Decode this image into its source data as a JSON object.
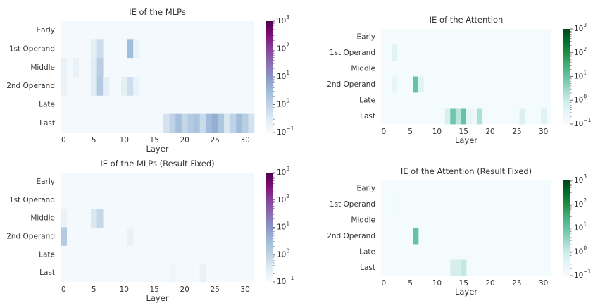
{
  "chart_data": [
    {
      "type": "heatmap",
      "title": "IE of the MLPs",
      "xlabel": "Layer",
      "rows": [
        "Early",
        "1st Operand",
        "Middle",
        "2nd Operand",
        "Late",
        "Last"
      ],
      "x_ticks": [
        0,
        5,
        10,
        15,
        20,
        25,
        30
      ],
      "n_layers": 32,
      "colormap": "BuPu",
      "colorbar": {
        "scale": "log",
        "range": [
          0.1,
          1000
        ],
        "tick_labels": [
          "10^3",
          "10^2",
          "10^1",
          "10^0",
          "10^-1"
        ]
      },
      "cells": [
        {
          "row": 1,
          "layer": 5,
          "value": 0.25
        },
        {
          "row": 1,
          "layer": 6,
          "value": 0.6
        },
        {
          "row": 1,
          "layer": 11,
          "value": 3
        },
        {
          "row": 1,
          "layer": 12,
          "value": 0.2
        },
        {
          "row": 2,
          "layer": 0,
          "value": 0.2
        },
        {
          "row": 2,
          "layer": 2,
          "value": 0.2
        },
        {
          "row": 2,
          "layer": 5,
          "value": 0.3
        },
        {
          "row": 2,
          "layer": 6,
          "value": 1.2
        },
        {
          "row": 3,
          "layer": 0,
          "value": 0.2
        },
        {
          "row": 3,
          "layer": 5,
          "value": 0.3
        },
        {
          "row": 3,
          "layer": 6,
          "value": 1.5
        },
        {
          "row": 3,
          "layer": 7,
          "value": 0.25
        },
        {
          "row": 3,
          "layer": 10,
          "value": 0.25
        },
        {
          "row": 3,
          "layer": 11,
          "value": 0.6
        },
        {
          "row": 3,
          "layer": 12,
          "value": 0.2
        },
        {
          "row": 5,
          "layer": 17,
          "value": 0.5
        },
        {
          "row": 5,
          "layer": 18,
          "value": 1
        },
        {
          "row": 5,
          "layer": 19,
          "value": 2.5
        },
        {
          "row": 5,
          "layer": 20,
          "value": 0.8
        },
        {
          "row": 5,
          "layer": 21,
          "value": 1.5
        },
        {
          "row": 5,
          "layer": 22,
          "value": 2
        },
        {
          "row": 5,
          "layer": 23,
          "value": 0.7
        },
        {
          "row": 5,
          "layer": 24,
          "value": 3
        },
        {
          "row": 5,
          "layer": 25,
          "value": 5
        },
        {
          "row": 5,
          "layer": 26,
          "value": 1.8
        },
        {
          "row": 5,
          "layer": 27,
          "value": 0.4
        },
        {
          "row": 5,
          "layer": 28,
          "value": 1
        },
        {
          "row": 5,
          "layer": 29,
          "value": 3
        },
        {
          "row": 5,
          "layer": 30,
          "value": 1.3
        },
        {
          "row": 5,
          "layer": 31,
          "value": 0.5
        }
      ]
    },
    {
      "type": "heatmap",
      "title": "IE of the Attention",
      "xlabel": "Layer",
      "rows": [
        "Early",
        "1st Operand",
        "Middle",
        "2nd Operand",
        "Late",
        "Last"
      ],
      "x_ticks": [
        0,
        5,
        10,
        15,
        20,
        25,
        30
      ],
      "n_layers": 32,
      "colormap": "BuGn",
      "colorbar": {
        "scale": "log",
        "range": [
          0.1,
          1000
        ],
        "tick_labels": [
          "10^3",
          "10^2",
          "10^1",
          "10^0",
          "10^-1"
        ]
      },
      "cells": [
        {
          "row": 1,
          "layer": 2,
          "value": 0.4
        },
        {
          "row": 3,
          "layer": 2,
          "value": 0.3
        },
        {
          "row": 3,
          "layer": 6,
          "value": 10
        },
        {
          "row": 3,
          "layer": 7,
          "value": 0.4
        },
        {
          "row": 5,
          "layer": 12,
          "value": 0.6
        },
        {
          "row": 5,
          "layer": 13,
          "value": 8
        },
        {
          "row": 5,
          "layer": 14,
          "value": 1.5
        },
        {
          "row": 5,
          "layer": 15,
          "value": 10
        },
        {
          "row": 5,
          "layer": 16,
          "value": 0.3
        },
        {
          "row": 5,
          "layer": 17,
          "value": 0.2
        },
        {
          "row": 5,
          "layer": 18,
          "value": 2
        },
        {
          "row": 5,
          "layer": 26,
          "value": 0.5
        },
        {
          "row": 5,
          "layer": 30,
          "value": 0.4
        }
      ]
    },
    {
      "type": "heatmap",
      "title": "IE of the MLPs (Result Fixed)",
      "xlabel": "Layer",
      "rows": [
        "Early",
        "1st Operand",
        "Middle",
        "2nd Operand",
        "Late",
        "Last"
      ],
      "x_ticks": [
        0,
        5,
        10,
        15,
        20,
        25,
        30
      ],
      "n_layers": 32,
      "colormap": "BuPu",
      "colorbar": {
        "scale": "log",
        "range": [
          0.1,
          1000
        ],
        "tick_labels": [
          "10^3",
          "10^2",
          "10^1",
          "10^0",
          "10^-1"
        ]
      },
      "cells": [
        {
          "row": 2,
          "layer": 0,
          "value": 0.2
        },
        {
          "row": 2,
          "layer": 5,
          "value": 0.4
        },
        {
          "row": 2,
          "layer": 6,
          "value": 0.8
        },
        {
          "row": 3,
          "layer": 0,
          "value": 1.5
        },
        {
          "row": 3,
          "layer": 11,
          "value": 0.2
        },
        {
          "row": 5,
          "layer": 18,
          "value": 0.15
        },
        {
          "row": 5,
          "layer": 23,
          "value": 0.2
        }
      ]
    },
    {
      "type": "heatmap",
      "title": "IE of the Attention (Result Fixed)",
      "xlabel": "Layer",
      "rows": [
        "Early",
        "1st Operand",
        "Middle",
        "2nd Operand",
        "Late",
        "Last"
      ],
      "x_ticks": [
        0,
        5,
        10,
        15,
        20,
        25,
        30
      ],
      "n_layers": 32,
      "colormap": "BuGn",
      "colorbar": {
        "scale": "log",
        "range": [
          0.1,
          1000
        ],
        "tick_labels": [
          "10^3",
          "10^2",
          "10^1",
          "10^0",
          "10^-1"
        ]
      },
      "cells": [
        {
          "row": 1,
          "layer": 2,
          "value": 0.15
        },
        {
          "row": 3,
          "layer": 6,
          "value": 10
        },
        {
          "row": 5,
          "layer": 13,
          "value": 0.7
        },
        {
          "row": 5,
          "layer": 14,
          "value": 0.7
        },
        {
          "row": 5,
          "layer": 15,
          "value": 1.2
        }
      ]
    }
  ]
}
